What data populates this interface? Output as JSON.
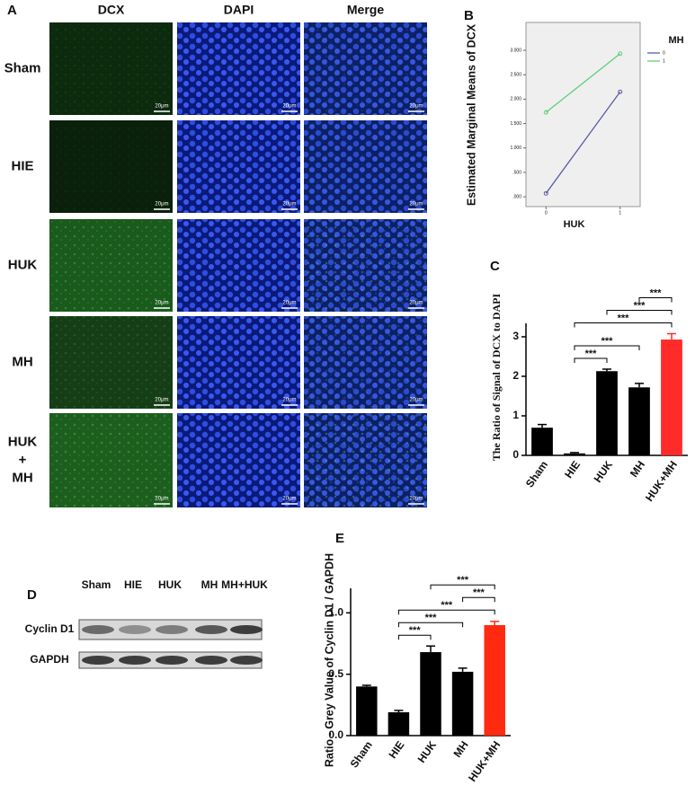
{
  "panel_a": {
    "letter": "A",
    "columns": [
      "DCX",
      "DAPI",
      "Merge"
    ],
    "rows": [
      [
        "Sham"
      ],
      [
        "HIE"
      ],
      [
        "HUK"
      ],
      [
        "MH"
      ],
      [
        "HUK",
        "+",
        "MH"
      ]
    ],
    "scale_bar": "20μm"
  },
  "chart_data": [
    {
      "type": "line",
      "panel": "B",
      "ylabel": "Estimated Marginal Means of DCX",
      "xlabel": "HUK",
      "legend_title": "MH",
      "legend": "right",
      "x": [
        0,
        1
      ],
      "xlim": [
        -0.27,
        1.27
      ],
      "xticks": [
        0,
        1
      ],
      "ylim": [
        -0.2,
        3.57
      ],
      "yticks": [
        {
          "value": 0,
          "label": ".000"
        },
        {
          "value": 0.5,
          "label": ".500"
        },
        {
          "value": 1,
          "label": "1.000"
        },
        {
          "value": 1.5,
          "label": "1.500"
        },
        {
          "value": 2,
          "label": "2.000"
        },
        {
          "value": 2.5,
          "label": "2.500"
        },
        {
          "value": 3,
          "label": "3.000"
        }
      ],
      "series": [
        {
          "name": "0",
          "color": "#5c5ca8",
          "values": [
            0.07,
            2.15
          ]
        },
        {
          "name": "1",
          "color": "#5fd07c",
          "values": [
            1.73,
            2.93
          ]
        }
      ]
    },
    {
      "type": "bar",
      "panel": "C",
      "ylabel": "The Ratio of Signal of DCX to DAPI",
      "categories": [
        "Sham",
        "HIE",
        "HUK",
        "MH",
        "HUK+MH"
      ],
      "values": [
        0.7,
        0.05,
        2.13,
        1.72,
        2.93
      ],
      "errors": [
        0.08,
        0.02,
        0.05,
        0.1,
        0.15
      ],
      "colors": [
        "#000000",
        "#000000",
        "#000000",
        "#000000",
        "#ff2a2a"
      ],
      "ylim": [
        0,
        3.34
      ],
      "yticks": [
        0,
        1,
        2,
        3
      ],
      "significance": [
        {
          "pair": [
            1,
            2
          ],
          "label": "***"
        },
        {
          "pair": [
            1,
            3
          ],
          "label": "***"
        },
        {
          "pair": [
            1,
            4
          ],
          "label": "***"
        },
        {
          "pair": [
            2,
            4
          ],
          "label": "***"
        },
        {
          "pair": [
            3,
            4
          ],
          "label": "***"
        }
      ]
    },
    {
      "type": "bar",
      "panel": "E",
      "ylabel": "Ratio - Grey Value of Cyclin D1 / GAPDH",
      "categories": [
        "Sham",
        "HIE",
        "HUK",
        "MH",
        "HUK+MH"
      ],
      "values": [
        0.4,
        0.19,
        0.68,
        0.52,
        0.9
      ],
      "errors": [
        0.01,
        0.015,
        0.05,
        0.03,
        0.03
      ],
      "colors": [
        "#000000",
        "#000000",
        "#000000",
        "#000000",
        "#ff2a10"
      ],
      "ylim": [
        0,
        1.2
      ],
      "yticks": [
        {
          "value": 0,
          "label": "0.0"
        },
        {
          "value": 0.5,
          "label": "0.5"
        },
        {
          "value": 1,
          "label": "1.0"
        }
      ],
      "significance": [
        {
          "pair": [
            1,
            2
          ],
          "label": "***"
        },
        {
          "pair": [
            1,
            3
          ],
          "label": "***"
        },
        {
          "pair": [
            1,
            4
          ],
          "label": "***"
        },
        {
          "pair": [
            3,
            4
          ],
          "label": "***"
        },
        {
          "pair": [
            2,
            4
          ],
          "label": "***"
        }
      ]
    }
  ],
  "panel_d": {
    "letter": "D",
    "lanes": [
      "Sham",
      "HIE",
      "HUK",
      "MH",
      "MH+HUK"
    ],
    "rows": [
      "Cyclin D1",
      "GAPDH"
    ]
  }
}
